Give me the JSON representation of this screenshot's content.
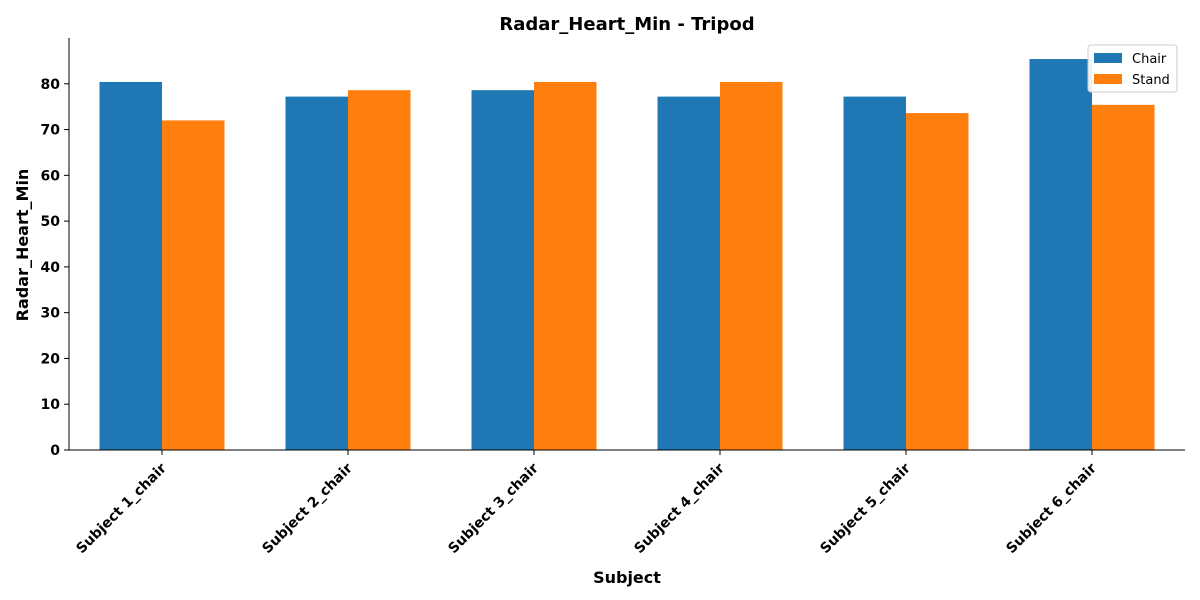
{
  "chart_data": {
    "type": "bar",
    "title": "Radar_Heart_Min - Tripod",
    "xlabel": "Subject",
    "ylabel": "Radar_Heart_Min",
    "categories": [
      "Subject 1_chair",
      "Subject 2_chair",
      "Subject 3_chair",
      "Subject 4_chair",
      "Subject 5_chair",
      "Subject 6_chair"
    ],
    "series": [
      {
        "name": "Chair",
        "color": "#1f77b4",
        "values": [
          80.4,
          77.2,
          78.6,
          77.2,
          77.2,
          85.4
        ]
      },
      {
        "name": "Stand",
        "color": "#ff7f0e",
        "values": [
          72.0,
          78.6,
          80.4,
          80.4,
          73.6,
          75.4
        ]
      }
    ],
    "ylim": [
      0,
      90
    ],
    "yticks": [
      0,
      10,
      20,
      30,
      40,
      50,
      60,
      70,
      80
    ],
    "legend_position": "top-right",
    "grid": false
  }
}
